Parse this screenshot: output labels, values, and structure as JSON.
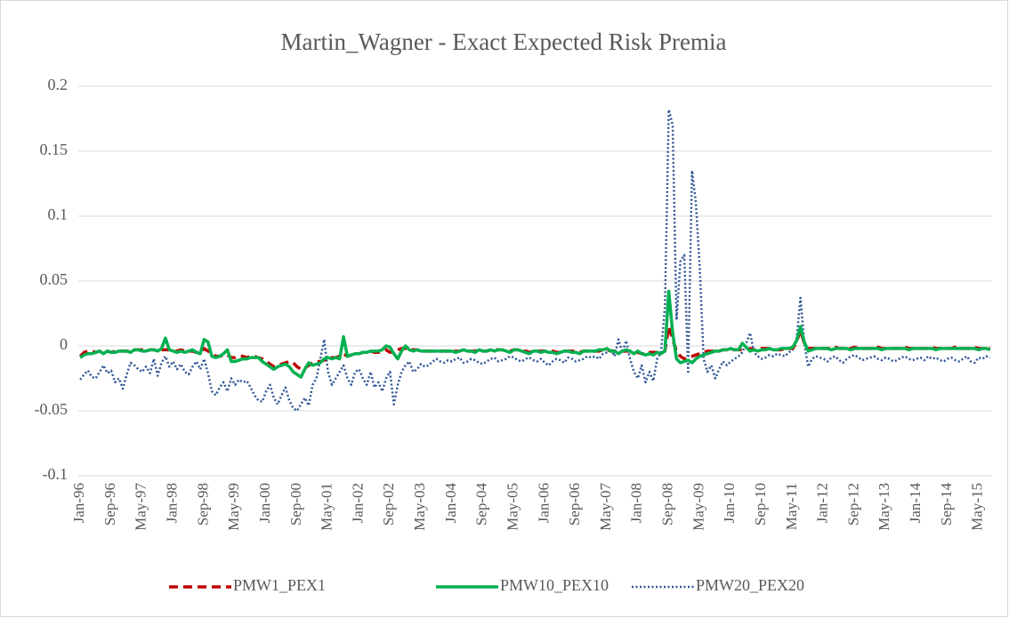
{
  "chart_data": {
    "type": "line",
    "title": "Martin_Wagner - Exact Expected Risk Premia",
    "categories": [
      "Jan-96",
      null,
      null,
      null,
      null,
      null,
      null,
      null,
      "Sep-96",
      null,
      null,
      null,
      null,
      null,
      null,
      null,
      "May-97",
      null,
      null,
      null,
      null,
      null,
      null,
      null,
      "Jan-98",
      null,
      null,
      null,
      null,
      null,
      null,
      null,
      "Sep-98",
      null,
      null,
      null,
      null,
      null,
      null,
      null,
      "May-99",
      null,
      null,
      null,
      null,
      null,
      null,
      null,
      "Jan-00",
      null,
      null,
      null,
      null,
      null,
      null,
      null,
      "Sep-00",
      null,
      null,
      null,
      null,
      null,
      null,
      null,
      "May-01",
      null,
      null,
      null,
      null,
      null,
      null,
      null,
      "Jan-02",
      null,
      null,
      null,
      null,
      null,
      null,
      null,
      "Sep-02",
      null,
      null,
      null,
      null,
      null,
      null,
      null,
      "May-03",
      null,
      null,
      null,
      null,
      null,
      null,
      null,
      "Jan-04",
      null,
      null,
      null,
      null,
      null,
      null,
      null,
      "Sep-04",
      null,
      null,
      null,
      null,
      null,
      null,
      null,
      "May-05",
      null,
      null,
      null,
      null,
      null,
      null,
      null,
      "Jan-06",
      null,
      null,
      null,
      null,
      null,
      null,
      null,
      "Sep-06",
      null,
      null,
      null,
      null,
      null,
      null,
      null,
      "May-07",
      null,
      null,
      null,
      null,
      null,
      null,
      null,
      "Jan-08",
      null,
      null,
      null,
      null,
      null,
      null,
      null,
      "Sep-08",
      null,
      null,
      null,
      null,
      null,
      null,
      null,
      "May-09",
      null,
      null,
      null,
      null,
      null,
      null,
      null,
      "Jan-10",
      null,
      null,
      null,
      null,
      null,
      null,
      null,
      "Sep-10",
      null,
      null,
      null,
      null,
      null,
      null,
      null,
      "May-11",
      null,
      null,
      null,
      null,
      null,
      null,
      null,
      "Jan-12",
      null,
      null,
      null,
      null,
      null,
      null,
      null,
      "Sep-12",
      null,
      null,
      null,
      null,
      null,
      null,
      null,
      "May-13",
      null,
      null,
      null,
      null,
      null,
      null,
      null,
      "Jan-14",
      null,
      null,
      null,
      null,
      null,
      null,
      null,
      "Sep-14",
      null,
      null,
      null,
      null,
      null,
      null,
      null,
      "May-15",
      null,
      null,
      null
    ],
    "series": [
      {
        "name": "PMW1_PEX1",
        "color": "#c00000",
        "style": "dashed",
        "values": [
          -0.008,
          -0.005,
          -0.004,
          -0.004,
          -0.005,
          -0.004,
          -0.005,
          -0.004,
          -0.005,
          -0.004,
          -0.004,
          -0.004,
          -0.004,
          -0.004,
          -0.003,
          -0.003,
          -0.003,
          -0.004,
          -0.003,
          -0.003,
          -0.004,
          -0.003,
          -0.003,
          -0.003,
          -0.004,
          -0.004,
          -0.003,
          -0.004,
          -0.004,
          -0.004,
          -0.005,
          -0.005,
          -0.002,
          -0.004,
          -0.006,
          -0.008,
          -0.008,
          -0.007,
          -0.007,
          -0.009,
          -0.009,
          -0.008,
          -0.008,
          -0.009,
          -0.008,
          -0.008,
          -0.009,
          -0.01,
          -0.012,
          -0.014,
          -0.016,
          -0.015,
          -0.014,
          -0.013,
          -0.012,
          -0.013,
          -0.016,
          -0.018,
          -0.017,
          -0.015,
          -0.013,
          -0.012,
          -0.012,
          -0.011,
          -0.01,
          -0.009,
          -0.009,
          -0.008,
          -0.006,
          -0.008,
          -0.007,
          -0.006,
          -0.006,
          -0.005,
          -0.005,
          -0.004,
          -0.005,
          -0.005,
          -0.004,
          -0.003,
          -0.005,
          -0.004,
          -0.003,
          -0.002,
          -0.002,
          -0.002,
          -0.003,
          -0.003,
          -0.004,
          -0.004,
          -0.004,
          -0.004,
          -0.004,
          -0.004,
          -0.004,
          -0.004,
          -0.004,
          -0.004,
          -0.004,
          -0.003,
          -0.004,
          -0.004,
          -0.004,
          -0.003,
          -0.004,
          -0.004,
          -0.003,
          -0.003,
          -0.003,
          -0.003,
          -0.004,
          -0.004,
          -0.003,
          -0.003,
          -0.004,
          -0.004,
          -0.005,
          -0.004,
          -0.004,
          -0.004,
          -0.004,
          -0.004,
          -0.004,
          -0.005,
          -0.005,
          -0.004,
          -0.004,
          -0.004,
          -0.004,
          -0.005,
          -0.004,
          -0.004,
          -0.004,
          -0.004,
          -0.004,
          -0.003,
          -0.003,
          -0.004,
          -0.004,
          -0.005,
          -0.004,
          -0.004,
          -0.004,
          -0.005,
          -0.005,
          -0.006,
          -0.006,
          -0.005,
          -0.005,
          -0.005,
          -0.005,
          -0.004,
          0.015,
          0.005,
          -0.004,
          -0.008,
          -0.01,
          -0.009,
          -0.008,
          -0.007,
          -0.006,
          -0.005,
          -0.004,
          -0.004,
          -0.004,
          -0.004,
          -0.003,
          -0.003,
          -0.003,
          -0.003,
          -0.003,
          -0.003,
          -0.003,
          -0.002,
          -0.003,
          -0.002,
          -0.002,
          -0.002,
          -0.002,
          -0.003,
          -0.003,
          -0.003,
          -0.002,
          -0.002,
          -0.002,
          0.003,
          0.012,
          0.002,
          -0.002,
          -0.002,
          -0.002,
          -0.002,
          -0.002,
          -0.002,
          -0.002,
          -0.001,
          -0.002,
          -0.002,
          -0.002,
          -0.002,
          -0.001,
          -0.002,
          -0.002,
          -0.002,
          -0.002,
          -0.002,
          -0.001,
          -0.002,
          -0.002,
          -0.002,
          -0.002,
          -0.002,
          -0.002,
          -0.001,
          -0.002,
          -0.002,
          -0.002,
          -0.002,
          -0.002,
          -0.002,
          -0.001,
          -0.002,
          -0.002,
          -0.002,
          -0.002,
          -0.002,
          -0.001,
          -0.002,
          -0.002,
          -0.002,
          -0.002,
          -0.001,
          -0.002,
          -0.002,
          -0.002,
          -0.002
        ]
      },
      {
        "name": "PMW10_PEX10",
        "color": "#00b050",
        "style": "solid",
        "values": [
          -0.009,
          -0.007,
          -0.006,
          -0.006,
          -0.005,
          -0.004,
          -0.006,
          -0.004,
          -0.005,
          -0.005,
          -0.004,
          -0.004,
          -0.004,
          -0.005,
          -0.003,
          -0.003,
          -0.004,
          -0.004,
          -0.003,
          -0.003,
          -0.004,
          -0.002,
          0.006,
          -0.003,
          -0.004,
          -0.005,
          -0.004,
          -0.005,
          -0.004,
          -0.003,
          -0.005,
          -0.006,
          0.005,
          0.003,
          -0.008,
          -0.009,
          -0.008,
          -0.006,
          -0.003,
          -0.012,
          -0.012,
          -0.011,
          -0.01,
          -0.01,
          -0.009,
          -0.009,
          -0.009,
          -0.012,
          -0.014,
          -0.016,
          -0.018,
          -0.016,
          -0.015,
          -0.014,
          -0.016,
          -0.02,
          -0.022,
          -0.024,
          -0.018,
          -0.013,
          -0.015,
          -0.014,
          -0.013,
          -0.01,
          -0.009,
          -0.01,
          -0.009,
          -0.01,
          0.007,
          -0.008,
          -0.007,
          -0.006,
          -0.006,
          -0.005,
          -0.005,
          -0.004,
          -0.004,
          -0.004,
          -0.003,
          0.0,
          -0.001,
          -0.006,
          -0.01,
          -0.004,
          0.0,
          -0.003,
          -0.004,
          -0.003,
          -0.004,
          -0.004,
          -0.004,
          -0.004,
          -0.004,
          -0.004,
          -0.004,
          -0.004,
          -0.004,
          -0.005,
          -0.004,
          -0.003,
          -0.004,
          -0.004,
          -0.005,
          -0.003,
          -0.004,
          -0.004,
          -0.003,
          -0.004,
          -0.003,
          -0.003,
          -0.004,
          -0.005,
          -0.003,
          -0.003,
          -0.004,
          -0.005,
          -0.006,
          -0.004,
          -0.004,
          -0.005,
          -0.004,
          -0.005,
          -0.005,
          -0.006,
          -0.005,
          -0.004,
          -0.004,
          -0.005,
          -0.005,
          -0.006,
          -0.004,
          -0.004,
          -0.004,
          -0.004,
          -0.003,
          -0.003,
          -0.002,
          -0.004,
          -0.004,
          -0.006,
          -0.004,
          -0.003,
          -0.004,
          -0.006,
          -0.004,
          -0.006,
          -0.007,
          -0.006,
          -0.007,
          -0.005,
          -0.006,
          -0.004,
          0.042,
          0.01,
          -0.01,
          -0.013,
          -0.012,
          -0.011,
          -0.013,
          -0.01,
          -0.008,
          -0.007,
          -0.006,
          -0.005,
          -0.004,
          -0.004,
          -0.003,
          -0.003,
          -0.002,
          -0.003,
          -0.003,
          0.002,
          -0.001,
          -0.004,
          -0.003,
          -0.004,
          -0.003,
          -0.003,
          -0.002,
          -0.003,
          -0.003,
          -0.002,
          -0.002,
          -0.002,
          -0.001,
          0.004,
          0.015,
          0.003,
          -0.004,
          -0.003,
          -0.002,
          -0.002,
          -0.002,
          -0.002,
          -0.003,
          -0.002,
          -0.002,
          -0.002,
          -0.002,
          -0.003,
          -0.002,
          -0.002,
          -0.002,
          -0.002,
          -0.002,
          -0.002,
          -0.002,
          -0.003,
          -0.002,
          -0.002,
          -0.002,
          -0.002,
          -0.002,
          -0.002,
          -0.003,
          -0.002,
          -0.002,
          -0.002,
          -0.002,
          -0.002,
          -0.002,
          -0.003,
          -0.002,
          -0.002,
          -0.002,
          -0.002,
          -0.002,
          -0.002,
          -0.002,
          -0.002,
          -0.002,
          -0.002,
          -0.003,
          -0.002,
          -0.002,
          -0.003
        ]
      },
      {
        "name": "PMW20_PEX20",
        "color": "#2f5597",
        "style": "dotted",
        "values": [
          -0.026,
          -0.022,
          -0.019,
          -0.024,
          -0.025,
          -0.02,
          -0.015,
          -0.021,
          -0.019,
          -0.028,
          -0.025,
          -0.033,
          -0.022,
          -0.013,
          -0.015,
          -0.018,
          -0.02,
          -0.016,
          -0.021,
          -0.01,
          -0.023,
          -0.013,
          -0.008,
          -0.016,
          -0.012,
          -0.018,
          -0.014,
          -0.02,
          -0.022,
          -0.016,
          -0.012,
          -0.018,
          -0.01,
          -0.021,
          -0.035,
          -0.038,
          -0.032,
          -0.028,
          -0.035,
          -0.025,
          -0.03,
          -0.026,
          -0.028,
          -0.027,
          -0.032,
          -0.038,
          -0.042,
          -0.043,
          -0.035,
          -0.03,
          -0.04,
          -0.045,
          -0.038,
          -0.032,
          -0.042,
          -0.048,
          -0.05,
          -0.045,
          -0.04,
          -0.046,
          -0.03,
          -0.025,
          -0.01,
          0.005,
          -0.02,
          -0.03,
          -0.025,
          -0.02,
          -0.015,
          -0.025,
          -0.03,
          -0.02,
          -0.018,
          -0.025,
          -0.03,
          -0.02,
          -0.032,
          -0.028,
          -0.035,
          -0.025,
          -0.02,
          -0.045,
          -0.03,
          -0.02,
          -0.015,
          -0.012,
          -0.02,
          -0.018,
          -0.014,
          -0.016,
          -0.015,
          -0.012,
          -0.01,
          -0.012,
          -0.013,
          -0.011,
          -0.012,
          -0.01,
          -0.009,
          -0.013,
          -0.012,
          -0.01,
          -0.011,
          -0.013,
          -0.014,
          -0.012,
          -0.01,
          -0.009,
          -0.012,
          -0.011,
          -0.01,
          -0.008,
          -0.009,
          -0.011,
          -0.012,
          -0.01,
          -0.009,
          -0.011,
          -0.012,
          -0.01,
          -0.013,
          -0.015,
          -0.012,
          -0.01,
          -0.011,
          -0.013,
          -0.009,
          -0.01,
          -0.012,
          -0.011,
          -0.01,
          -0.008,
          -0.009,
          -0.008,
          -0.01,
          -0.006,
          -0.005,
          -0.002,
          -0.008,
          0.005,
          -0.005,
          0.004,
          -0.01,
          -0.02,
          -0.025,
          -0.015,
          -0.028,
          -0.02,
          -0.027,
          -0.01,
          -0.005,
          0.03,
          0.182,
          0.17,
          0.02,
          0.065,
          0.07,
          -0.02,
          0.135,
          0.11,
          0.06,
          -0.01,
          -0.02,
          -0.015,
          -0.025,
          -0.018,
          -0.012,
          -0.015,
          -0.012,
          -0.01,
          -0.008,
          -0.005,
          0.002,
          0.01,
          -0.005,
          -0.008,
          -0.01,
          -0.009,
          -0.007,
          -0.008,
          -0.006,
          -0.007,
          -0.008,
          -0.005,
          -0.003,
          0.005,
          0.037,
          0.002,
          -0.016,
          -0.01,
          -0.008,
          -0.009,
          -0.01,
          -0.012,
          -0.009,
          -0.008,
          -0.011,
          -0.013,
          -0.01,
          -0.008,
          -0.007,
          -0.009,
          -0.011,
          -0.01,
          -0.009,
          -0.008,
          -0.01,
          -0.011,
          -0.009,
          -0.01,
          -0.012,
          -0.011,
          -0.009,
          -0.008,
          -0.01,
          -0.011,
          -0.01,
          -0.009,
          -0.011,
          -0.008,
          -0.01,
          -0.009,
          -0.011,
          -0.012,
          -0.01,
          -0.009,
          -0.011,
          -0.012,
          -0.01,
          -0.008,
          -0.012,
          -0.013,
          -0.009,
          -0.01,
          -0.008,
          -0.009
        ]
      }
    ],
    "ylim": [
      -0.1,
      0.2
    ],
    "yticks": [
      -0.1,
      -0.05,
      0,
      0.05,
      0.1,
      0.15,
      0.2
    ],
    "grid": true,
    "legend": "bottom"
  }
}
